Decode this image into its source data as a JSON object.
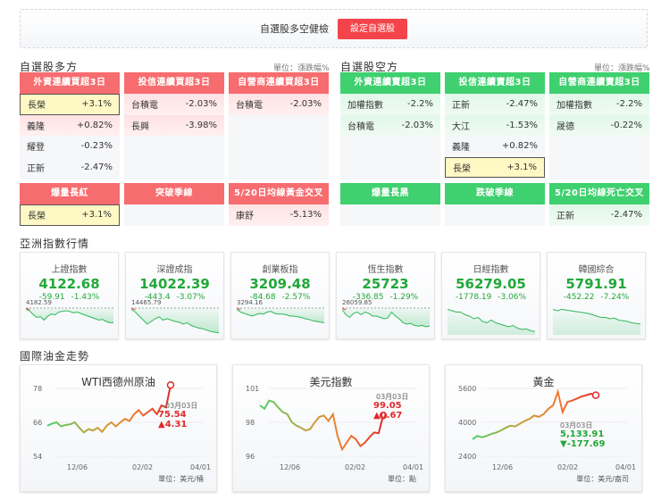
{
  "topbar": {
    "label": "自選股多空健檢",
    "button": "設定自選股"
  },
  "bull": {
    "title": "自選股多方",
    "unit": "單位：漲跌幅%",
    "accent": "#f76c6f",
    "groups": [
      {
        "header": "外資連續買超3日",
        "rows": [
          {
            "name": "長榮",
            "pct": "+3.1%",
            "highlight": true
          },
          {
            "name": "義隆",
            "pct": "+0.82%"
          },
          {
            "name": "耀登",
            "pct": "-0.23%"
          },
          {
            "name": "正新",
            "pct": "-2.47%"
          }
        ]
      },
      {
        "header": "投信連續買超3日",
        "rows": [
          {
            "name": "台積電",
            "pct": "-2.03%"
          },
          {
            "name": "長興",
            "pct": "-3.98%"
          }
        ]
      },
      {
        "header": "自營商連續買超3日",
        "rows": [
          {
            "name": "台積電",
            "pct": "-2.03%"
          }
        ]
      },
      {
        "header": "爆量長紅",
        "rows": [
          {
            "name": "長榮",
            "pct": "+3.1%",
            "highlight": true
          }
        ]
      },
      {
        "header": "突破季線",
        "rows": []
      },
      {
        "header": "5/20日均線黃金交叉",
        "rows": [
          {
            "name": "康舒",
            "pct": "-5.13%"
          }
        ]
      }
    ]
  },
  "bear": {
    "title": "自選股空方",
    "unit": "單位：漲跌幅%",
    "accent": "#3fd06f",
    "groups": [
      {
        "header": "外資連續賣超3日",
        "rows": [
          {
            "name": "加權指數",
            "pct": "-2.2%"
          },
          {
            "name": "台積電",
            "pct": "-2.03%"
          }
        ]
      },
      {
        "header": "投信連續賣超3日",
        "rows": [
          {
            "name": "正新",
            "pct": "-2.47%"
          },
          {
            "name": "大江",
            "pct": "-1.53%"
          },
          {
            "name": "義隆",
            "pct": "+0.82%"
          },
          {
            "name": "長榮",
            "pct": "+3.1%",
            "highlight": true
          }
        ]
      },
      {
        "header": "自營商連續賣超3日",
        "rows": [
          {
            "name": "加權指數",
            "pct": "-2.2%"
          },
          {
            "name": "晟德",
            "pct": "-0.22%"
          }
        ]
      },
      {
        "header": "爆量長黑",
        "rows": []
      },
      {
        "header": "跌破季線",
        "rows": []
      },
      {
        "header": "5/20日均線死亡交叉",
        "rows": [
          {
            "name": "正新",
            "pct": "-2.47%"
          }
        ]
      }
    ]
  },
  "asia": {
    "title": "亞洲指數行情",
    "indices": [
      {
        "name": "上證指數",
        "value": "4122.68",
        "change": "-59.91",
        "pct": "-1.43%",
        "ref": "4182.59"
      },
      {
        "name": "深證成指",
        "value": "14022.39",
        "change": "-443.4",
        "pct": "-3.07%",
        "ref": "14465.79"
      },
      {
        "name": "創業板指",
        "value": "3209.48",
        "change": "-84.68",
        "pct": "-2.57%",
        "ref": "3294.16"
      },
      {
        "name": "恆生指數",
        "value": "25723",
        "change": "-336.85",
        "pct": "-1.29%",
        "ref": "26059.85"
      },
      {
        "name": "日經指數",
        "value": "56279.05",
        "change": "-1778.19",
        "pct": "-3.06%",
        "ref": ""
      },
      {
        "name": "韓國綜合",
        "value": "5791.91",
        "change": "-452.22",
        "pct": "-7.24%",
        "ref": ""
      }
    ]
  },
  "commodities": {
    "title": "國際油金走勢",
    "charts": [
      {
        "name": "WTI西德州原油",
        "y_ticks": [
          "78",
          "66",
          "54"
        ],
        "x_ticks": [
          "12/06",
          "02/02",
          "04/01"
        ],
        "date": "03月03日",
        "price": "75.54",
        "change": "▲4.31",
        "direction": "up",
        "unit": "單位：美元/桶"
      },
      {
        "name": "美元指數",
        "y_ticks": [
          "101",
          "98",
          "96"
        ],
        "x_ticks": [
          "12/06",
          "02/02",
          "04/01"
        ],
        "date": "03月03日",
        "price": "99.05",
        "change": "▲0.67",
        "direction": "up",
        "unit": "單位：點"
      },
      {
        "name": "黃金",
        "y_ticks": [
          "5600",
          "4000",
          "2400"
        ],
        "x_ticks": [
          "12/06",
          "02/02",
          "04/01"
        ],
        "date": "03月03日",
        "price": "5,133.91",
        "change": "▼-177.69",
        "direction": "down",
        "unit": "單位：美元/盎司"
      }
    ]
  }
}
